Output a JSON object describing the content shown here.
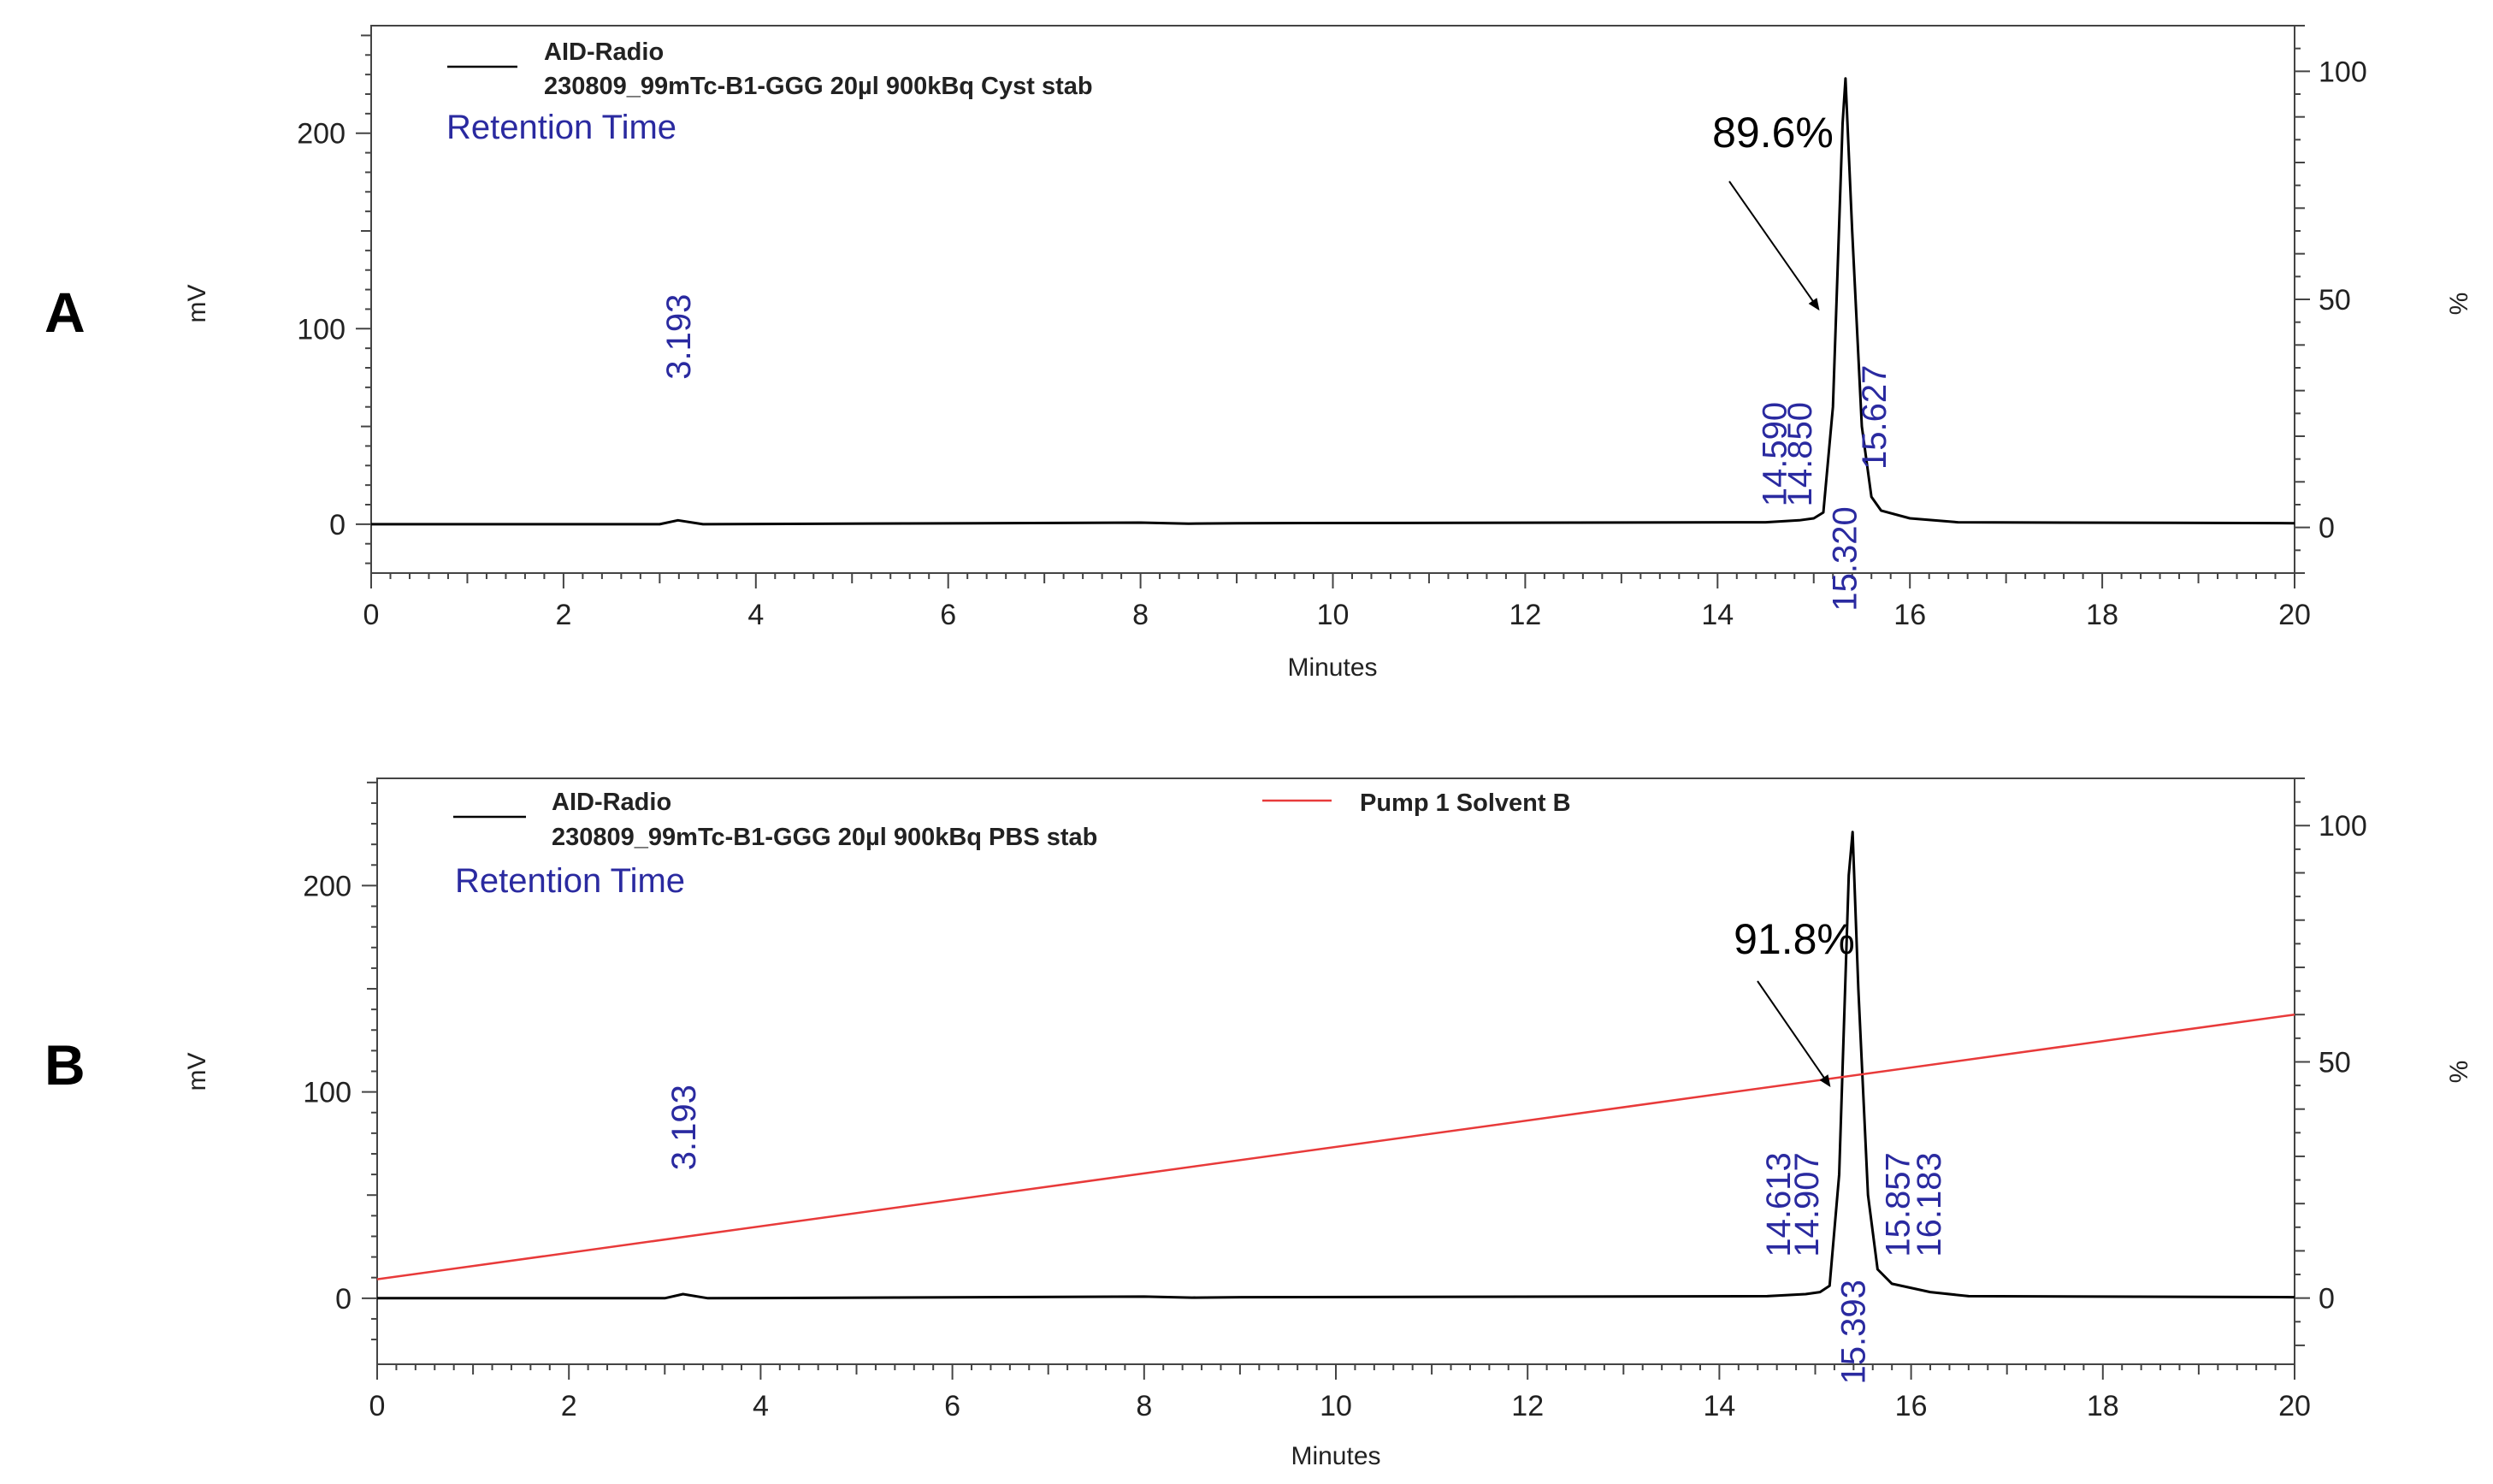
{
  "chart_data": [
    {
      "type": "line",
      "panel_label": "A",
      "legend": [
        {
          "series": "AID-Radio",
          "line2": "230809_99mTc-B1-GGG 20µl 900kBq Cyst stab",
          "color": "#000000"
        }
      ],
      "retention_label": "Retention Time",
      "xlabel": "Minutes",
      "ylabel_left": "mV",
      "ylabel_right": "%",
      "xlim": [
        0,
        20
      ],
      "ylim_left": [
        -25,
        255
      ],
      "ylim_right": [
        -10,
        110
      ],
      "x_ticks": [
        "0",
        "2",
        "4",
        "6",
        "8",
        "10",
        "12",
        "14",
        "16",
        "18",
        "20"
      ],
      "y_ticks_left": [
        "0",
        "100",
        "200"
      ],
      "y_ticks_right": [
        "0",
        "50",
        "100"
      ],
      "series": [
        {
          "name": "AID-Radio",
          "color": "#000000",
          "x": [
            0,
            3.0,
            3.19,
            3.45,
            8.0,
            8.5,
            9.0,
            14.5,
            14.85,
            15.0,
            15.1,
            15.2,
            15.3,
            15.33,
            15.4,
            15.5,
            15.6,
            15.7,
            16.0,
            16.5,
            20
          ],
          "y": [
            0,
            0,
            2,
            0,
            0.8,
            0.3,
            0.5,
            1,
            2,
            3,
            6,
            60,
            205,
            228,
            150,
            50,
            14,
            7,
            3,
            1,
            0.5
          ]
        }
      ],
      "peak_labels": [
        "3.193",
        "14.590",
        "14.850",
        "15.320",
        "15.627"
      ],
      "annotation": {
        "text": "89.6%",
        "arrow_to": [
          15.05,
          110
        ]
      }
    },
    {
      "type": "line",
      "panel_label": "B",
      "legend": [
        {
          "series": "AID-Radio",
          "line2": "230809_99mTc-B1-GGG 20µl 900kBq PBS stab",
          "color": "#000000"
        },
        {
          "series": "Pump 1 Solvent B",
          "line2": "",
          "color": "#e83a3a"
        }
      ],
      "retention_label": "Retention Time",
      "xlabel": "Minutes",
      "ylabel_left": "mV",
      "ylabel_right": "%",
      "xlim": [
        0,
        20
      ],
      "ylim_left": [
        -32,
        252
      ],
      "ylim_right": [
        -14,
        110
      ],
      "x_ticks": [
        "0",
        "2",
        "4",
        "6",
        "8",
        "10",
        "12",
        "14",
        "16",
        "18",
        "20"
      ],
      "y_ticks_left": [
        "0",
        "100",
        "200"
      ],
      "y_ticks_right": [
        "0",
        "50",
        "100"
      ],
      "series": [
        {
          "name": "AID-Radio",
          "color": "#000000",
          "x": [
            0,
            3.0,
            3.19,
            3.45,
            8.0,
            8.5,
            9.0,
            14.5,
            14.9,
            15.05,
            15.15,
            15.25,
            15.35,
            15.39,
            15.45,
            15.55,
            15.65,
            15.8,
            16.2,
            16.6,
            20
          ],
          "y": [
            0,
            0,
            2,
            0,
            0.8,
            0.3,
            0.5,
            1,
            2,
            3,
            6,
            60,
            205,
            226,
            150,
            50,
            14,
            7,
            3,
            1,
            0.5
          ]
        },
        {
          "name": "Pump 1 Solvent B",
          "color": "#e83a3a",
          "axis": "right",
          "x": [
            0,
            20
          ],
          "y": [
            4,
            60
          ]
        }
      ],
      "peak_labels": [
        "3.193",
        "14.613",
        "14.907",
        "15.393",
        "15.857",
        "16.183"
      ],
      "annotation": {
        "text": "91.8%",
        "arrow_to": [
          15.15,
          103
        ]
      }
    }
  ]
}
